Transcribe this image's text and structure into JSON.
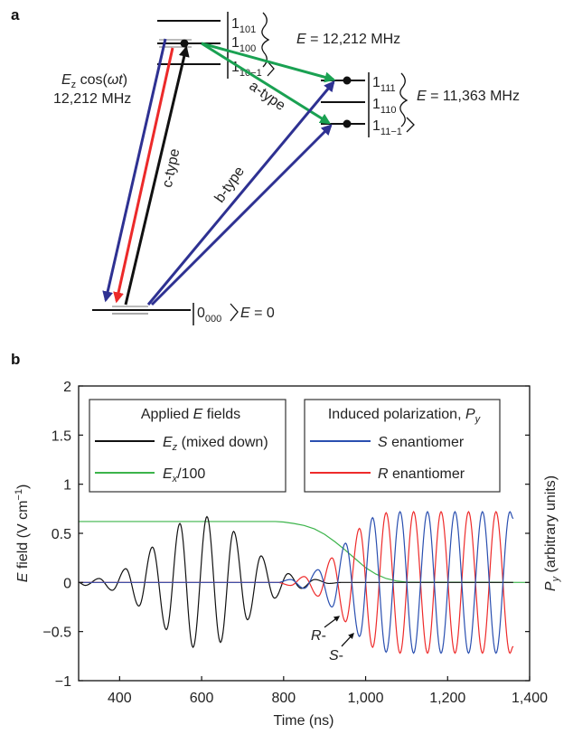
{
  "panel_a": {
    "label": "a",
    "upper_states": [
      {
        "main": "1",
        "sub": "101"
      },
      {
        "main": "1",
        "sub": "100"
      },
      {
        "main": "1",
        "sub": "10−1"
      }
    ],
    "upper_energy": {
      "sym": "E",
      "text": " = 12,212 MHz"
    },
    "middle_states": [
      {
        "main": "1",
        "sub": "111"
      },
      {
        "main": "1",
        "sub": "110"
      },
      {
        "main": "1",
        "sub": "11−1"
      }
    ],
    "middle_energy": {
      "sym": "E",
      "text": " = 11,363 MHz"
    },
    "ground_state": {
      "main": "0",
      "sub": "000"
    },
    "ground_energy": {
      "sym": "E",
      "text": " = 0"
    },
    "drive_label": {
      "sym": "E",
      "sub": "z",
      "text": " cos(",
      "omega_t": "ωt",
      "close": ")",
      "freq": "12,212 MHz"
    },
    "transition_labels": {
      "a": "a-type",
      "b": "b-type",
      "c": "c-type"
    },
    "colors": {
      "a_type": "#1aa152",
      "b_type": "#2e3192",
      "c_type": "#111111",
      "red": "#ec2a2a"
    }
  },
  "chart_data": {
    "panel_label": "b",
    "type": "line",
    "xlabel": "Time (ns)",
    "ylabel": {
      "sym": "E",
      "text": " field (V cm",
      "sup": "−1",
      "close": ")"
    },
    "ylabel_right": {
      "sym": "P",
      "sub": "y",
      "text": " (arbitrary units)"
    },
    "xlim": [
      300,
      1400
    ],
    "ylim": [
      -1,
      2
    ],
    "xticks": [
      400,
      600,
      800,
      1000,
      1200,
      1400
    ],
    "xtick_labels": [
      "400",
      "600",
      "800",
      "1,000",
      "1,200",
      "1,400"
    ],
    "yticks": [
      -1,
      -0.5,
      0,
      0.5,
      1,
      1.5,
      2
    ],
    "ytick_labels": [
      "−1",
      "−0.5",
      "0",
      "0.5",
      "1",
      "1.5",
      "2"
    ],
    "grid": false,
    "legends": [
      {
        "title": {
          "pre": "Applied ",
          "sym": "E",
          "post": " fields"
        },
        "entries": [
          {
            "sym": "E",
            "sub": "z",
            "text": " (mixed down)",
            "color": "#111111"
          },
          {
            "sym": "E",
            "sub": "x",
            "text": "/100",
            "color": "#3cb44b"
          }
        ],
        "placement": "top-left"
      },
      {
        "title": {
          "pre": "Induced polarization, ",
          "sym": "P",
          "sub": "y"
        },
        "entries": [
          {
            "sym": "S",
            "text": " enantiomer",
            "color": "#2a4fb0"
          },
          {
            "sym": "R",
            "text": " enantiomer",
            "color": "#ee2b2b"
          }
        ],
        "placement": "top-center"
      }
    ],
    "series": [
      {
        "name": "Ez (mixed down)",
        "color": "#111111",
        "interp": "cosine",
        "points": [
          [
            300,
            0
          ],
          [
            316,
            -0.03
          ],
          [
            350,
            0.04
          ],
          [
            382,
            -0.08
          ],
          [
            415,
            0.14
          ],
          [
            447,
            -0.24
          ],
          [
            480,
            0.36
          ],
          [
            514,
            -0.48
          ],
          [
            547,
            0.6
          ],
          [
            579,
            -0.66
          ],
          [
            613,
            0.67
          ],
          [
            646,
            -0.61
          ],
          [
            678,
            0.52
          ],
          [
            712,
            -0.38
          ],
          [
            745,
            0.27
          ],
          [
            778,
            -0.16
          ],
          [
            811,
            0.09
          ],
          [
            843,
            -0.06
          ],
          [
            876,
            0.03
          ],
          [
            911,
            -0.01
          ],
          [
            940,
            0
          ],
          [
            1360,
            0
          ]
        ]
      },
      {
        "name": "Ex/100",
        "color": "#3cb44b",
        "interp": "linear",
        "points": [
          [
            300,
            0.62
          ],
          [
            780,
            0.62
          ],
          [
            800,
            0.615
          ],
          [
            825,
            0.6
          ],
          [
            850,
            0.58
          ],
          [
            875,
            0.545
          ],
          [
            900,
            0.49
          ],
          [
            925,
            0.415
          ],
          [
            950,
            0.33
          ],
          [
            975,
            0.24
          ],
          [
            1000,
            0.15
          ],
          [
            1025,
            0.085
          ],
          [
            1050,
            0.04
          ],
          [
            1075,
            0.015
          ],
          [
            1100,
            0.003
          ],
          [
            1400,
            0
          ]
        ]
      },
      {
        "name": "S enantiomer",
        "color": "#2a4fb0",
        "interp": "cosine",
        "points": [
          [
            300,
            0
          ],
          [
            785,
            0
          ],
          [
            817,
            0.03
          ],
          [
            850,
            -0.06
          ],
          [
            884,
            0.13
          ],
          [
            918,
            -0.25
          ],
          [
            951,
            0.4
          ],
          [
            985,
            -0.55
          ],
          [
            1017,
            0.66
          ],
          [
            1050,
            -0.71
          ],
          [
            1084,
            0.72
          ],
          [
            1117,
            -0.72
          ],
          [
            1151,
            0.72
          ],
          [
            1184,
            -0.72
          ],
          [
            1218,
            0.72
          ],
          [
            1251,
            -0.72
          ],
          [
            1285,
            0.72
          ],
          [
            1318,
            -0.72
          ],
          [
            1352,
            0.72
          ],
          [
            1360,
            0.65
          ]
        ]
      },
      {
        "name": "R enantiomer",
        "color": "#ee2b2b",
        "interp": "cosine",
        "points": [
          [
            300,
            0
          ],
          [
            785,
            0
          ],
          [
            817,
            -0.03
          ],
          [
            850,
            0.06
          ],
          [
            884,
            -0.14
          ],
          [
            918,
            0.25
          ],
          [
            951,
            -0.4
          ],
          [
            985,
            0.55
          ],
          [
            1017,
            -0.66
          ],
          [
            1050,
            0.71
          ],
          [
            1084,
            -0.72
          ],
          [
            1117,
            0.72
          ],
          [
            1151,
            -0.72
          ],
          [
            1184,
            0.72
          ],
          [
            1218,
            -0.72
          ],
          [
            1251,
            0.72
          ],
          [
            1285,
            -0.72
          ],
          [
            1318,
            0.72
          ],
          [
            1352,
            -0.72
          ],
          [
            1360,
            -0.65
          ]
        ]
      }
    ],
    "annotations": [
      {
        "sym": "R",
        "text": "-",
        "points_to": [
          951,
          -0.4
        ]
      },
      {
        "sym": "S",
        "text": "-",
        "points_to": [
          985,
          -0.55
        ]
      }
    ]
  }
}
